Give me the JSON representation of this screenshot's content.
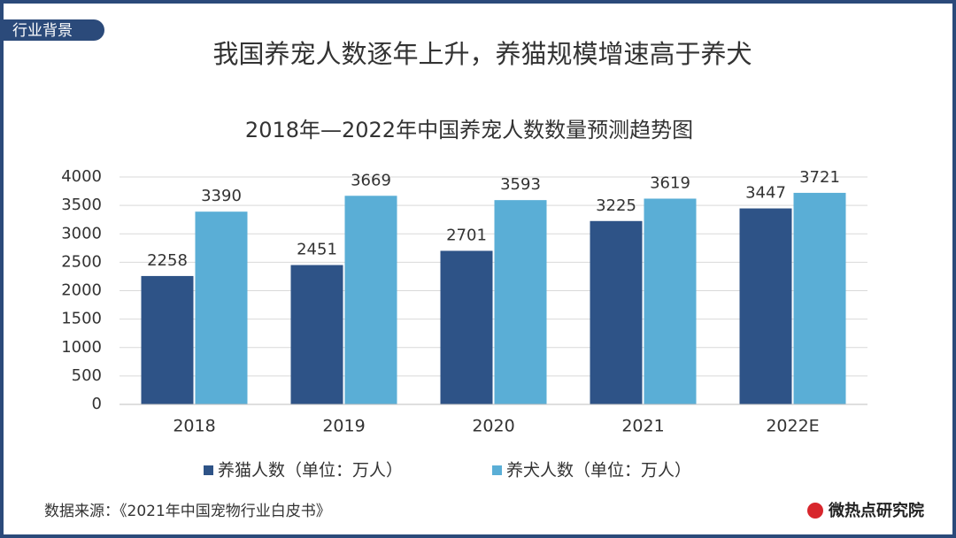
{
  "header": {
    "tag": "行业背景",
    "title": "我国养宠人数逐年上升，养猫规模增速高于养犬"
  },
  "chart_data": {
    "type": "bar",
    "title": "2018年—2022年中国养宠人数数量预测趋势图",
    "categories": [
      "2018",
      "2019",
      "2020",
      "2021",
      "2022E"
    ],
    "series": [
      {
        "name": "养猫人数（单位：万人）",
        "color": "#2e5387",
        "values": [
          2258,
          2451,
          2701,
          3225,
          3447
        ]
      },
      {
        "name": "养犬人数（单位：万人）",
        "color": "#5aaed6",
        "values": [
          3390,
          3669,
          3593,
          3619,
          3721
        ]
      }
    ],
    "ylim": [
      0,
      4000
    ],
    "yticks": [
      0,
      500,
      1000,
      1500,
      2000,
      2500,
      3000,
      3500,
      4000
    ],
    "grid": true,
    "legend": "bottom"
  },
  "footer": {
    "source": "数据来源：《2021年中国宠物行业白皮书》",
    "logo": "微热点研究院"
  }
}
